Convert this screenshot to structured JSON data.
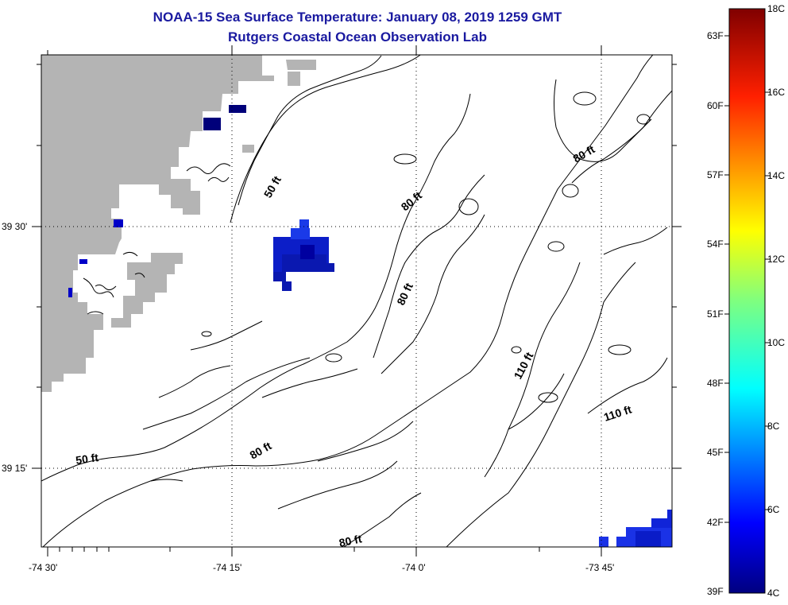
{
  "header": {
    "title": "NOAA-15 Sea Surface Temperature:  January 08, 2019 1259 GMT",
    "subtitle": "Rutgers Coastal Ocean Observation Lab"
  },
  "axes": {
    "lon_ticks": [
      "-74 30'",
      "-74 15'",
      "-74 0'",
      "-73 45'"
    ],
    "lat_ticks": [
      "39 30'",
      "39 15'"
    ]
  },
  "contours": [
    {
      "id": "c1",
      "label": "50 ft"
    },
    {
      "id": "c2",
      "label": "50 ft"
    },
    {
      "id": "c3",
      "label": "80 ft"
    },
    {
      "id": "c4",
      "label": "80 ft"
    },
    {
      "id": "c5",
      "label": "80 ft"
    },
    {
      "id": "c6",
      "label": "80 ft"
    },
    {
      "id": "c7",
      "label": "80 ft"
    },
    {
      "id": "c8",
      "label": "110 ft"
    },
    {
      "id": "c9",
      "label": "110 ft"
    }
  ],
  "colorbar": {
    "fahrenheit": [
      "63F",
      "60F",
      "57F",
      "54F",
      "51F",
      "48F",
      "45F",
      "42F",
      "39F"
    ],
    "celsius": [
      "18C",
      "16C",
      "14C",
      "12C",
      "10C",
      "8C",
      "6C",
      "4C"
    ]
  },
  "colors": {
    "title": "#1a1aa0",
    "land": "#b4b4b4",
    "cold": "#0000c8",
    "cold_dark": "#00007a"
  }
}
